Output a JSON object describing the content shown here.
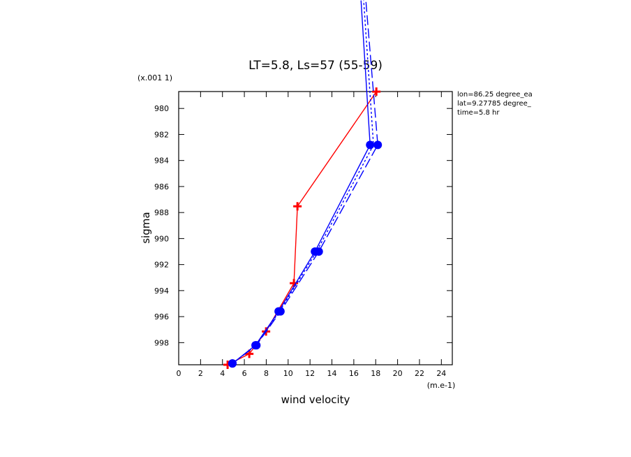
{
  "chart_data": {
    "type": "line",
    "title": "LT=5.8, Ls=57 (55-59)",
    "x_label": "wind velocity",
    "y_label": "sigma",
    "x_units": "(m.e-1)",
    "y_units": "(x.001 1)",
    "annotations": [
      "lon=86.25 degree_ea",
      "lat=9.27785 degree_",
      "time=5.8 hr"
    ],
    "xlim": [
      0,
      25
    ],
    "ylim": [
      999.7,
      978.7
    ],
    "xticks": [
      0,
      2,
      4,
      6,
      8,
      10,
      12,
      14,
      16,
      18,
      20,
      22,
      24
    ],
    "yticks": [
      980,
      982,
      984,
      986,
      988,
      990,
      992,
      994,
      996,
      998
    ],
    "series": [
      {
        "color": "#ff0000",
        "line": "solid",
        "marker": "plus",
        "x": [
          4.47,
          6.45,
          7.98,
          10.53,
          10.85,
          18.06
        ],
        "values": [
          999.7,
          998.86,
          997.14,
          993.43,
          987.52,
          978.71
        ]
      },
      {
        "color": "#0000ff",
        "line": "solid",
        "marker": "circle",
        "x": [
          4.91,
          7.02,
          9.13,
          12.45,
          17.49,
          16.66
        ],
        "values": [
          999.6,
          998.2,
          995.6,
          991.0,
          982.8,
          971.7
        ]
      },
      {
        "color": "#0000ff",
        "line": "dashed",
        "marker": "circle",
        "x": [
          4.91,
          7.1,
          9.3,
          12.8,
          18.19,
          17.1
        ],
        "values": [
          999.6,
          998.2,
          995.6,
          991.0,
          982.8,
          971.7
        ]
      },
      {
        "color": "#0000ff",
        "line": "dotted",
        "marker": "none",
        "x": [
          4.91,
          7.05,
          9.2,
          12.6,
          17.8,
          16.9
        ],
        "values": [
          999.6,
          998.2,
          995.6,
          991.0,
          982.8,
          971.7
        ]
      }
    ]
  }
}
